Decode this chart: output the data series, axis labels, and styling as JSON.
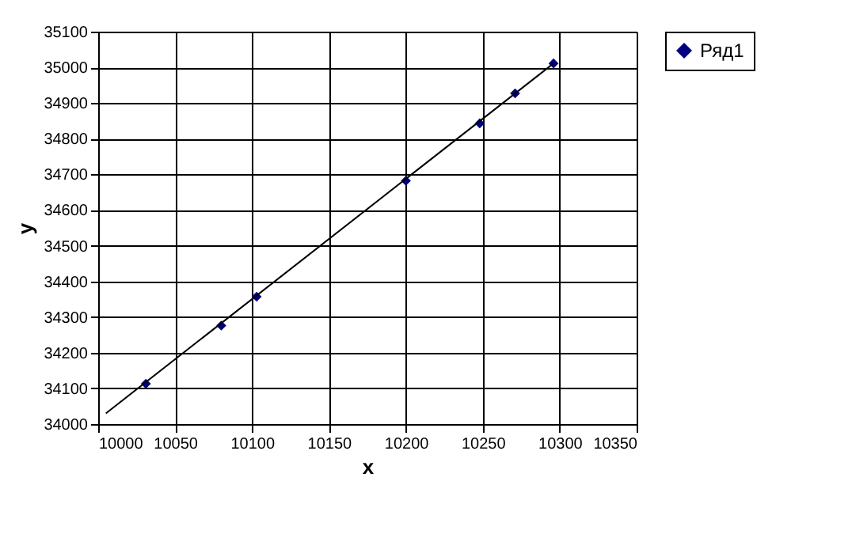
{
  "chart_data": {
    "type": "scatter",
    "xlabel": "x",
    "ylabel": "y",
    "series": [
      {
        "name": "Ряд1",
        "marker": "diamond",
        "color": "#000080",
        "x": [
          10031,
          10080,
          10103,
          10200,
          10248,
          10271,
          10296
        ],
        "values": [
          34113,
          34276,
          34357,
          34682,
          34843,
          34927,
          35011
        ]
      },
      {
        "type": "line",
        "color": "#000000",
        "x": [
          10005,
          10296
        ],
        "values": [
          34030,
          35011
        ]
      }
    ],
    "xlim": [
      10000,
      10350
    ],
    "xticks": [
      10000,
      10050,
      10100,
      10150,
      10200,
      10250,
      10300,
      10350
    ],
    "ylim": [
      34000,
      35100
    ],
    "yticks": [
      34000,
      34100,
      34200,
      34300,
      34400,
      34500,
      34600,
      34700,
      34800,
      34900,
      35000,
      35100
    ],
    "grid": true,
    "legend": "right"
  }
}
